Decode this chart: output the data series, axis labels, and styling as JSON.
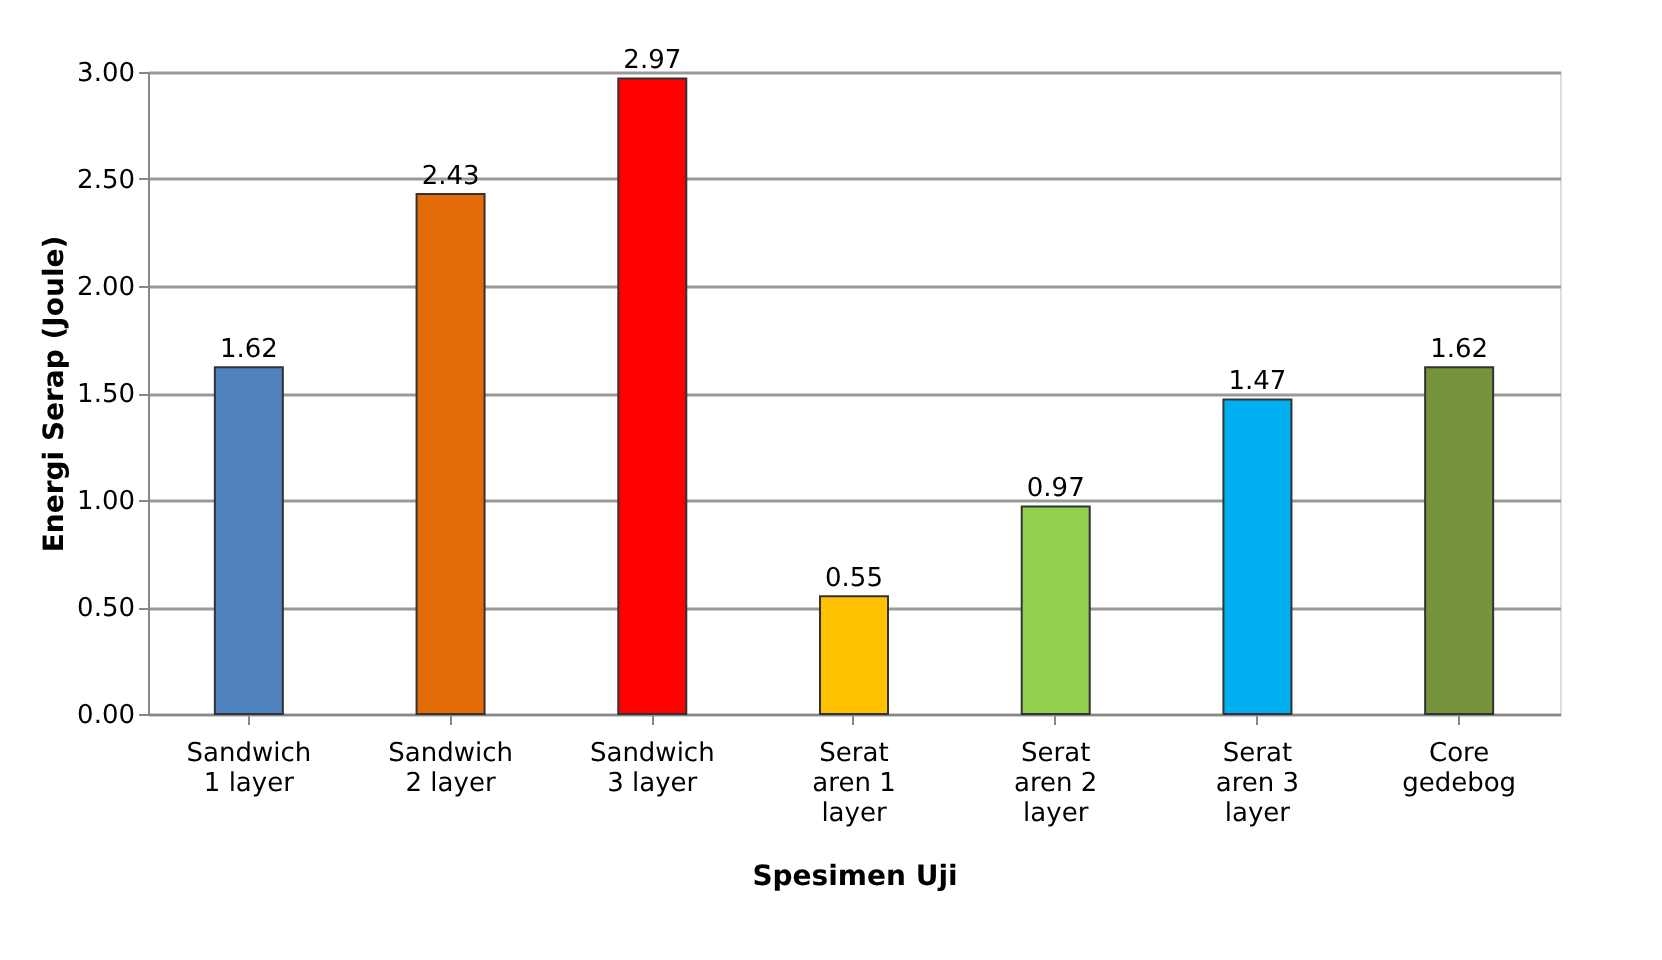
{
  "chart_data": {
    "type": "bar",
    "xlabel": "Spesimen Uji",
    "ylabel": "Energi Serap (Joule)",
    "categories": [
      "Sandwich 1 layer",
      "Sandwich 2 layer",
      "Sandwich 3 layer",
      "Serat aren 1 layer",
      "Serat aren 2 layer",
      "Serat aren 3 layer",
      "Core gedebog"
    ],
    "values": [
      1.62,
      2.43,
      2.97,
      0.55,
      0.97,
      1.47,
      1.62
    ],
    "colors": [
      "#4f81bd",
      "#e36c09",
      "#ff0000",
      "#ffc000",
      "#92d050",
      "#00b0f0",
      "#77933c"
    ],
    "ylim": [
      0,
      3
    ],
    "yticks": [
      {
        "value": 0,
        "label": "0.00"
      },
      {
        "value": 0.5,
        "label": "0.50"
      },
      {
        "value": 1,
        "label": "1.00"
      },
      {
        "value": 1.5,
        "label": "1.50"
      },
      {
        "value": 2,
        "label": "2.00"
      },
      {
        "value": 2.5,
        "label": "2.50"
      },
      {
        "value": 3,
        "label": "3.00"
      }
    ],
    "grid": "y",
    "data_labels": true
  }
}
